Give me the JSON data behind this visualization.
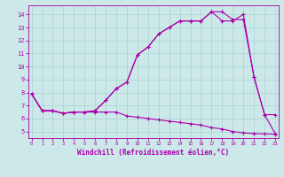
{
  "xlabel": "Windchill (Refroidissement éolien,°C)",
  "background_color": "#cce8e8",
  "line_color": "#aa00aa",
  "series1_x": [
    0,
    1,
    2,
    3,
    4,
    5,
    6,
    7,
    8,
    9,
    10,
    11,
    12,
    13,
    14,
    15,
    16,
    17,
    18,
    19,
    20,
    21,
    22,
    23
  ],
  "series1_y": [
    7.9,
    6.6,
    6.6,
    6.4,
    6.5,
    6.5,
    6.5,
    6.5,
    6.5,
    6.2,
    6.1,
    6.0,
    5.9,
    5.8,
    5.7,
    5.6,
    5.5,
    5.3,
    5.2,
    5.0,
    4.9,
    4.85,
    4.82,
    4.8
  ],
  "series2_x": [
    0,
    1,
    2,
    3,
    4,
    5,
    6,
    7,
    8,
    9,
    10,
    11,
    12,
    13,
    14,
    15,
    16,
    17,
    18,
    19,
    20,
    21,
    22,
    23
  ],
  "series2_y": [
    7.9,
    6.6,
    6.6,
    6.4,
    6.5,
    6.5,
    6.6,
    7.4,
    8.3,
    8.8,
    10.9,
    11.5,
    12.5,
    13.0,
    13.5,
    13.5,
    13.5,
    14.2,
    13.5,
    13.5,
    14.0,
    9.2,
    6.3,
    6.3
  ],
  "series3_x": [
    0,
    1,
    2,
    3,
    4,
    5,
    6,
    7,
    8,
    9,
    10,
    11,
    12,
    13,
    14,
    15,
    16,
    17,
    18,
    19,
    20,
    21,
    22,
    23
  ],
  "series3_y": [
    7.9,
    6.6,
    6.6,
    6.4,
    6.5,
    6.5,
    6.6,
    7.4,
    8.3,
    8.8,
    10.9,
    11.5,
    12.5,
    13.0,
    13.5,
    13.5,
    13.5,
    14.2,
    14.2,
    13.6,
    13.6,
    9.2,
    6.3,
    4.85
  ],
  "xlim": [
    -0.3,
    23.3
  ],
  "ylim": [
    4.5,
    14.7
  ],
  "yticks": [
    5,
    6,
    7,
    8,
    9,
    10,
    11,
    12,
    13,
    14
  ],
  "xticks": [
    0,
    1,
    2,
    3,
    4,
    5,
    6,
    7,
    8,
    9,
    10,
    11,
    12,
    13,
    14,
    15,
    16,
    17,
    18,
    19,
    20,
    21,
    22,
    23
  ]
}
